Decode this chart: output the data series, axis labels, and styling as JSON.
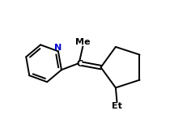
{
  "bg_color": "#ffffff",
  "line_color": "#000000",
  "N_color": "#0000cc",
  "C_color": "#000000",
  "label_color": "#000000",
  "figsize": [
    2.31,
    1.63
  ],
  "dpi": 100,
  "lw": 1.4,
  "xlim": [
    0,
    6.5
  ],
  "ylim": [
    0,
    5.0
  ]
}
